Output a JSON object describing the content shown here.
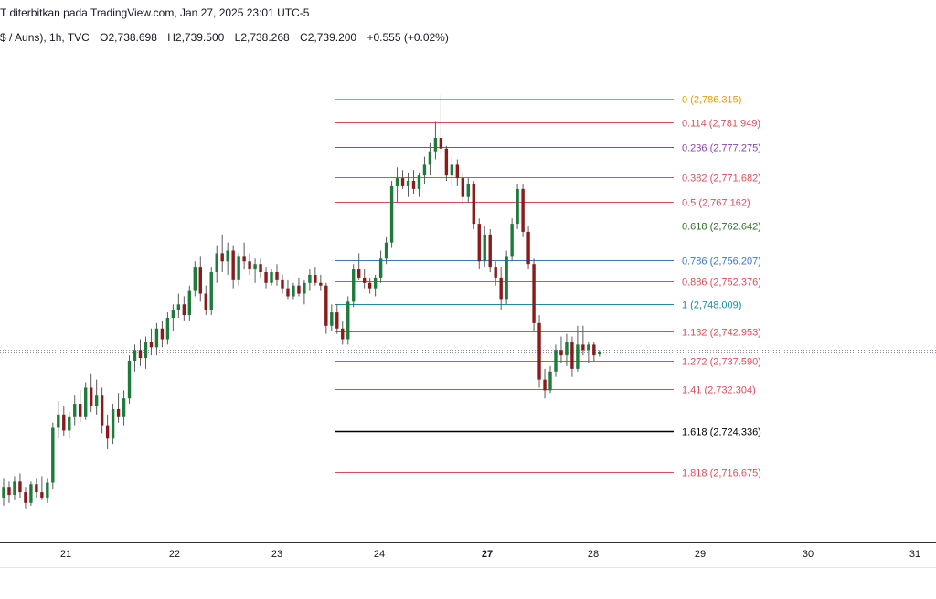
{
  "header": {
    "title": "T diterbitkan pada TradingView.com, Jan 27, 2025 23:01 UTC-5",
    "symbol": "$ / Auns), 1h, TVC",
    "open": "O2,738.698",
    "high": "H2,739.500",
    "low": "L2,738.268",
    "close": "C2,739.200",
    "change": "+0.555 (+0.02%)"
  },
  "chart_data": {
    "type": "candlestick",
    "ylim": [
      2705,
      2792
    ],
    "x_tick_labels": [
      "21",
      "22",
      "23",
      "24",
      "27",
      "28",
      "29",
      "30",
      "31"
    ],
    "current_price": 2739.2,
    "fib_levels": [
      {
        "ratio": "0",
        "price": 2786.315,
        "label": "0 (2,786.315)",
        "color": "#e69a00"
      },
      {
        "ratio": "0.114",
        "price": 2781.949,
        "label": "0.114 (2,781.949)",
        "color": "#d94f5c"
      },
      {
        "ratio": "0.236",
        "price": 2777.275,
        "label": "0.236 (2,777.275)",
        "color": "#8e44ad"
      },
      {
        "ratio": "0.382",
        "price": 2771.682,
        "label": "0.382 (2,771.682)",
        "color": "#d94f5c"
      },
      {
        "ratio": "0.5",
        "price": 2767.162,
        "label": "0.5 (2,767.162)",
        "color": "#d94f5c"
      },
      {
        "ratio": "0.618",
        "price": 2762.642,
        "label": "0.618 (2,762.642)",
        "color": "#2e6b2e"
      },
      {
        "ratio": "0.786",
        "price": 2756.207,
        "label": "0.786 (2,756.207)",
        "color": "#3a78c2"
      },
      {
        "ratio": "0.886",
        "price": 2752.376,
        "label": "0.886 (2,752.376)",
        "color": "#d94f5c"
      },
      {
        "ratio": "1",
        "price": 2748.009,
        "label": "1 (2,748.009)",
        "color": "#1a8fa0"
      },
      {
        "ratio": "1.132",
        "price": 2742.953,
        "label": "1.132 (2,742.953)",
        "color": "#d94f5c"
      },
      {
        "ratio": "1.272",
        "price": 2737.59,
        "label": "1.272 (2,737.590)",
        "color": "#d94f5c"
      },
      {
        "ratio": "1.41",
        "price": 2732.304,
        "label": "1.41 (2,732.304)",
        "color": "#d94f5c"
      },
      {
        "ratio": "1.618",
        "price": 2724.336,
        "label": "1.618 (2,724.336)",
        "color": "#000000"
      },
      {
        "ratio": "1.818",
        "price": 2716.675,
        "label": "1.818 (2,716.675)",
        "color": "#d94f5c"
      }
    ],
    "candles_ohlc": [
      [
        2712.0,
        2715.5,
        2710.5,
        2714.0
      ],
      [
        2714.0,
        2715.0,
        2711.0,
        2712.5
      ],
      [
        2712.5,
        2716.0,
        2711.5,
        2715.0
      ],
      [
        2715.0,
        2716.5,
        2712.0,
        2713.0
      ],
      [
        2713.0,
        2714.0,
        2710.0,
        2711.0
      ],
      [
        2711.0,
        2715.0,
        2710.5,
        2714.5
      ],
      [
        2714.5,
        2715.5,
        2712.0,
        2713.0
      ],
      [
        2713.0,
        2716.0,
        2711.5,
        2712.0
      ],
      [
        2712.0,
        2715.5,
        2711.0,
        2714.8
      ],
      [
        2714.8,
        2726.0,
        2713.5,
        2725.0
      ],
      [
        2725.0,
        2730.0,
        2723.0,
        2727.5
      ],
      [
        2727.5,
        2729.0,
        2723.5,
        2724.5
      ],
      [
        2724.5,
        2728.0,
        2723.0,
        2727.0
      ],
      [
        2727.0,
        2731.0,
        2725.5,
        2729.5
      ],
      [
        2729.5,
        2732.0,
        2726.0,
        2727.0
      ],
      [
        2727.0,
        2733.5,
        2726.5,
        2732.5
      ],
      [
        2732.5,
        2735.0,
        2728.0,
        2729.0
      ],
      [
        2729.0,
        2734.0,
        2727.5,
        2731.0
      ],
      [
        2731.0,
        2732.5,
        2724.0,
        2725.5
      ],
      [
        2725.5,
        2727.5,
        2721.0,
        2723.0
      ],
      [
        2723.0,
        2729.5,
        2722.0,
        2728.5
      ],
      [
        2728.5,
        2731.5,
        2726.0,
        2727.0
      ],
      [
        2727.0,
        2732.0,
        2725.5,
        2730.5
      ],
      [
        2730.5,
        2738.5,
        2729.5,
        2737.5
      ],
      [
        2737.5,
        2740.5,
        2735.5,
        2739.5
      ],
      [
        2739.5,
        2741.5,
        2736.5,
        2738.0
      ],
      [
        2738.0,
        2742.0,
        2736.0,
        2741.0
      ],
      [
        2741.0,
        2743.5,
        2738.5,
        2740.0
      ],
      [
        2740.0,
        2744.5,
        2738.5,
        2743.5
      ],
      [
        2743.5,
        2745.0,
        2740.0,
        2741.5
      ],
      [
        2741.5,
        2746.5,
        2740.5,
        2745.5
      ],
      [
        2745.5,
        2748.0,
        2743.0,
        2747.0
      ],
      [
        2747.0,
        2750.0,
        2745.5,
        2748.0
      ],
      [
        2748.0,
        2749.5,
        2745.0,
        2746.0
      ],
      [
        2746.0,
        2751.5,
        2745.0,
        2750.5
      ],
      [
        2750.5,
        2756.0,
        2749.5,
        2755.0
      ],
      [
        2755.0,
        2757.0,
        2748.5,
        2750.0
      ],
      [
        2750.0,
        2751.5,
        2746.0,
        2747.0
      ],
      [
        2747.0,
        2755.0,
        2746.0,
        2754.0
      ],
      [
        2754.0,
        2759.0,
        2752.0,
        2757.5
      ],
      [
        2757.5,
        2761.0,
        2754.0,
        2756.0
      ],
      [
        2756.0,
        2759.5,
        2753.5,
        2758.0
      ],
      [
        2758.0,
        2759.0,
        2751.0,
        2752.5
      ],
      [
        2752.5,
        2757.5,
        2751.5,
        2757.0
      ],
      [
        2757.0,
        2759.5,
        2754.5,
        2756.0
      ],
      [
        2756.0,
        2757.5,
        2753.5,
        2754.5
      ],
      [
        2754.5,
        2756.5,
        2752.0,
        2755.5
      ],
      [
        2755.5,
        2756.5,
        2753.0,
        2754.0
      ],
      [
        2754.0,
        2755.0,
        2751.0,
        2752.0
      ],
      [
        2752.0,
        2754.5,
        2751.5,
        2754.0
      ],
      [
        2754.0,
        2755.5,
        2751.5,
        2752.5
      ],
      [
        2752.5,
        2753.5,
        2750.0,
        2751.0
      ],
      [
        2751.0,
        2752.5,
        2749.0,
        2749.5
      ],
      [
        2749.5,
        2752.0,
        2749.0,
        2751.5
      ],
      [
        2751.5,
        2753.0,
        2749.5,
        2750.0
      ],
      [
        2750.0,
        2752.5,
        2748.0,
        2752.0
      ],
      [
        2752.0,
        2754.5,
        2750.5,
        2753.5
      ],
      [
        2753.5,
        2755.0,
        2751.5,
        2752.0
      ],
      [
        2752.0,
        2753.5,
        2750.5,
        2751.5
      ],
      [
        2751.5,
        2752.0,
        2742.5,
        2744.0
      ],
      [
        2744.0,
        2748.0,
        2743.0,
        2746.5
      ],
      [
        2746.5,
        2748.0,
        2742.5,
        2743.5
      ],
      [
        2743.5,
        2745.0,
        2740.5,
        2741.5
      ],
      [
        2741.5,
        2749.5,
        2740.5,
        2748.5
      ],
      [
        2748.5,
        2755.5,
        2747.5,
        2754.5
      ],
      [
        2754.5,
        2757.5,
        2752.5,
        2753.0
      ],
      [
        2753.0,
        2754.5,
        2751.0,
        2752.0
      ],
      [
        2752.0,
        2753.0,
        2750.0,
        2751.0
      ],
      [
        2751.0,
        2753.5,
        2749.5,
        2753.0
      ],
      [
        2753.0,
        2758.0,
        2752.0,
        2756.5
      ],
      [
        2756.5,
        2760.5,
        2755.5,
        2759.5
      ],
      [
        2759.5,
        2771.0,
        2758.5,
        2770.0
      ],
      [
        2770.0,
        2773.5,
        2767.0,
        2771.5
      ],
      [
        2771.5,
        2773.0,
        2769.5,
        2770.0
      ],
      [
        2770.0,
        2772.5,
        2768.0,
        2771.0
      ],
      [
        2771.0,
        2773.0,
        2768.5,
        2769.5
      ],
      [
        2769.5,
        2772.5,
        2768.0,
        2772.0
      ],
      [
        2772.0,
        2775.5,
        2770.5,
        2774.0
      ],
      [
        2774.0,
        2778.0,
        2772.0,
        2776.5
      ],
      [
        2776.5,
        2782.0,
        2775.0,
        2779.0
      ],
      [
        2779.0,
        2787.0,
        2776.0,
        2777.0
      ],
      [
        2777.0,
        2777.5,
        2771.0,
        2772.0
      ],
      [
        2772.0,
        2775.5,
        2770.0,
        2774.0
      ],
      [
        2774.0,
        2775.0,
        2770.0,
        2771.5
      ],
      [
        2771.5,
        2772.5,
        2766.5,
        2768.0
      ],
      [
        2768.0,
        2771.5,
        2767.0,
        2770.5
      ],
      [
        2770.5,
        2771.0,
        2762.0,
        2763.0
      ],
      [
        2763.0,
        2764.0,
        2754.5,
        2756.0
      ],
      [
        2756.0,
        2762.5,
        2755.0,
        2761.0
      ],
      [
        2761.0,
        2762.0,
        2754.0,
        2755.0
      ],
      [
        2755.0,
        2756.0,
        2751.5,
        2753.0
      ],
      [
        2753.0,
        2755.0,
        2747.0,
        2749.0
      ],
      [
        2749.0,
        2758.0,
        2748.0,
        2757.0
      ],
      [
        2757.0,
        2764.0,
        2756.0,
        2763.0
      ],
      [
        2763.0,
        2770.5,
        2762.0,
        2769.5
      ],
      [
        2769.5,
        2770.5,
        2760.5,
        2761.5
      ],
      [
        2761.5,
        2762.5,
        2754.5,
        2755.5
      ],
      [
        2755.5,
        2756.5,
        2743.0,
        2744.5
      ],
      [
        2744.5,
        2746.0,
        2732.5,
        2734.0
      ],
      [
        2734.0,
        2736.0,
        2730.5,
        2732.0
      ],
      [
        2732.0,
        2736.5,
        2731.5,
        2735.5
      ],
      [
        2735.5,
        2740.5,
        2734.5,
        2739.5
      ],
      [
        2739.5,
        2742.0,
        2737.0,
        2738.5
      ],
      [
        2738.5,
        2742.5,
        2736.5,
        2741.0
      ],
      [
        2741.0,
        2742.0,
        2734.5,
        2736.0
      ],
      [
        2736.0,
        2744.0,
        2735.5,
        2740.5
      ],
      [
        2740.5,
        2744.0,
        2738.5,
        2739.5
      ],
      [
        2739.5,
        2741.0,
        2737.0,
        2740.5
      ],
      [
        2740.5,
        2741.0,
        2737.5,
        2738.5
      ],
      [
        2738.698,
        2739.5,
        2738.268,
        2739.2
      ]
    ]
  }
}
